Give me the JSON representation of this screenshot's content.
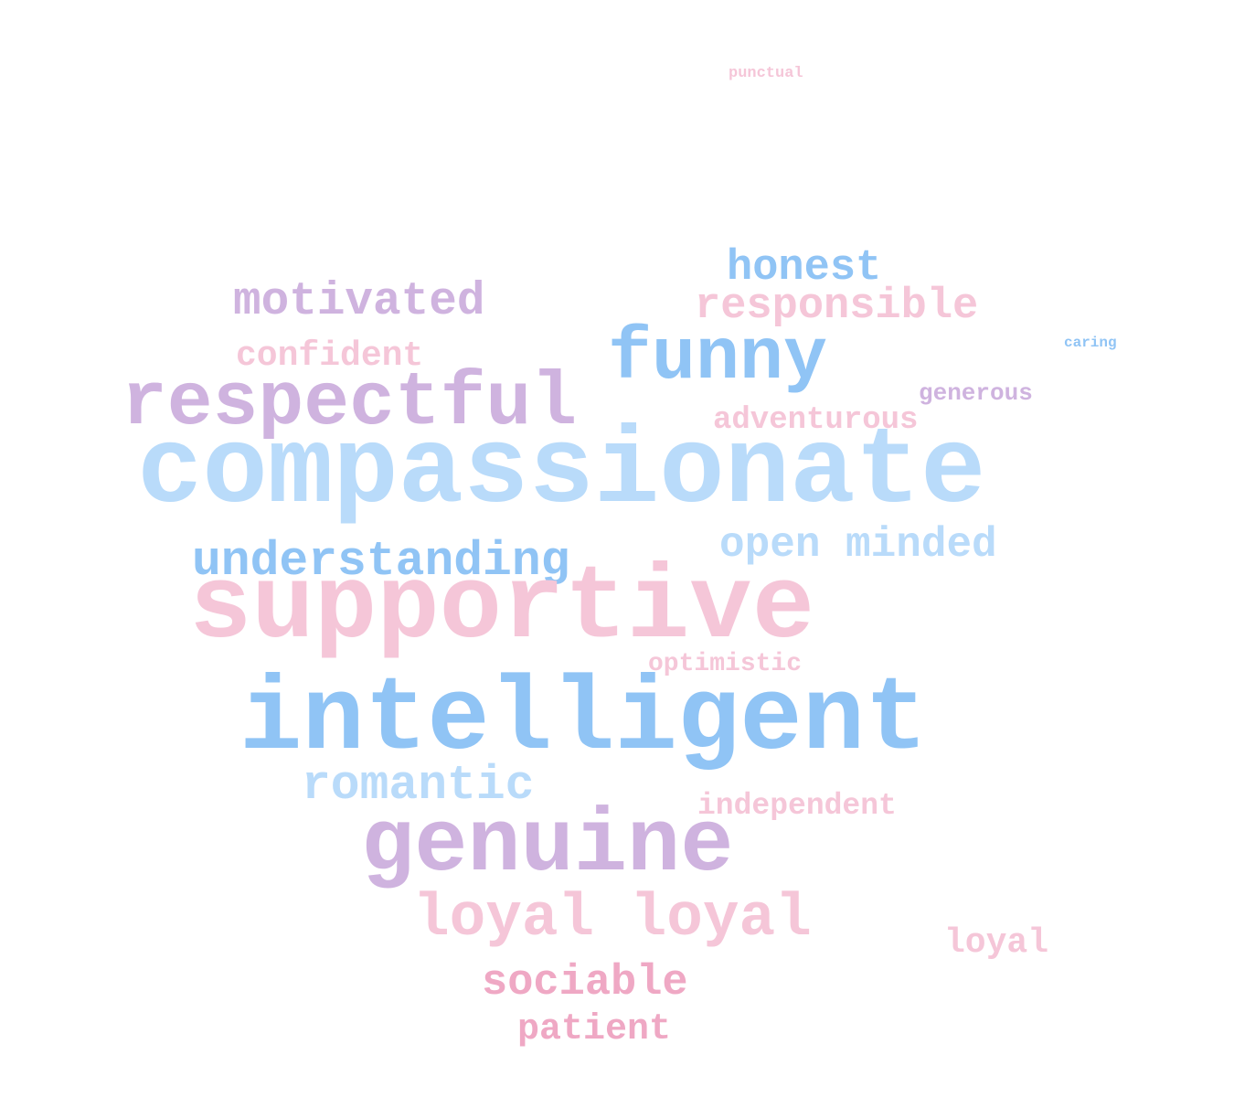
{
  "word_cloud": {
    "words": [
      {
        "text": "punctual",
        "color": "#f5c6d8"
      },
      {
        "text": "honest",
        "color": "#90c4f5"
      },
      {
        "text": "motivated",
        "color": "#cfb3df"
      },
      {
        "text": "responsible",
        "color": "#f5c6d8"
      },
      {
        "text": "caring",
        "color": "#90c4f5"
      },
      {
        "text": "confident",
        "color": "#f5c6d8"
      },
      {
        "text": "funny",
        "color": "#90c4f5"
      },
      {
        "text": "generous",
        "color": "#cfb3df"
      },
      {
        "text": "respectful",
        "color": "#cfb3df"
      },
      {
        "text": "adventurous",
        "color": "#f5c6d8"
      },
      {
        "text": "compassionate",
        "color": "#b9dbfa"
      },
      {
        "text": "open minded",
        "color": "#b9dbfa"
      },
      {
        "text": "understanding",
        "color": "#90c4f5"
      },
      {
        "text": "supportive",
        "color": "#f5c6d8"
      },
      {
        "text": "optimistic",
        "color": "#f5c6d8"
      },
      {
        "text": "intelligent",
        "color": "#90c4f5"
      },
      {
        "text": "romantic",
        "color": "#b9dbfa"
      },
      {
        "text": "independent",
        "color": "#f5c6d8"
      },
      {
        "text": "genuine",
        "color": "#cfb3df"
      },
      {
        "text": "loyal loyal",
        "color": "#f5c6d8"
      },
      {
        "text": "loyal",
        "color": "#f5c6d8"
      },
      {
        "text": "sociable",
        "color": "#efa8c4"
      },
      {
        "text": "patient",
        "color": "#efa8c4"
      }
    ]
  }
}
